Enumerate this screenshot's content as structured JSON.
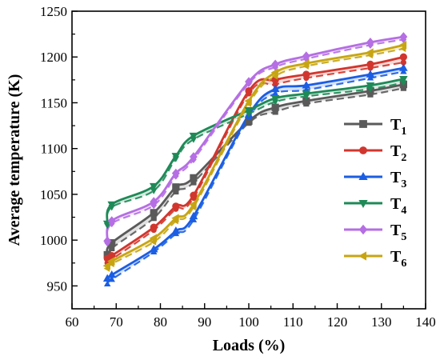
{
  "chart_data": {
    "type": "line",
    "xlabel": "Loads (%)",
    "ylabel": "Average temperature (K)",
    "xlim": [
      60,
      140
    ],
    "ylim": [
      925,
      1250
    ],
    "xticks": [
      60,
      70,
      80,
      90,
      100,
      110,
      120,
      130,
      140
    ],
    "yticks": [
      950,
      1000,
      1050,
      1100,
      1150,
      1200,
      1250
    ],
    "grid": false,
    "legend_position": "right",
    "x": [
      68,
      69,
      78.5,
      83.5,
      87.5,
      100,
      106,
      113,
      127.5,
      135
    ],
    "series": [
      {
        "name": "T1",
        "name_base": "T",
        "name_sub": "1",
        "color": "#5a5a5a",
        "marker": "square",
        "values": [
          984,
          997,
          1030,
          1058,
          1068,
          1130,
          1145,
          1152,
          1163,
          1170
        ],
        "values_dashed": [
          981,
          991,
          1024,
          1053,
          1063,
          1128,
          1140,
          1149,
          1159,
          1166
        ]
      },
      {
        "name": "T2",
        "name_base": "T",
        "name_sub": "2",
        "color": "#d1362e",
        "marker": "circle",
        "values": [
          980,
          983,
          1014,
          1037,
          1049,
          1163,
          1175,
          1181,
          1192,
          1200
        ],
        "values_dashed": [
          975,
          979,
          1011,
          1034,
          1046,
          1160,
          1170,
          1177,
          1188,
          1194
        ]
      },
      {
        "name": "T3",
        "name_base": "T",
        "name_sub": "3",
        "color": "#1b5ee3",
        "marker": "triangle-up",
        "values": [
          958,
          962,
          990,
          1010,
          1026,
          1137,
          1165,
          1169,
          1181,
          1188
        ],
        "values_dashed": [
          952,
          957,
          987,
          1007,
          1022,
          1134,
          1160,
          1164,
          1177,
          1184
        ]
      },
      {
        "name": "T4",
        "name_base": "T",
        "name_sub": "4",
        "color": "#1e8a57",
        "marker": "triangle-down",
        "values": [
          1018,
          1039,
          1059,
          1092,
          1114,
          1142,
          1155,
          1160,
          1169,
          1176
        ],
        "values_dashed": [
          1016,
          1036,
          1054,
          1089,
          1110,
          1138,
          1151,
          1157,
          1165,
          1172
        ]
      },
      {
        "name": "T5",
        "name_base": "T",
        "name_sub": "5",
        "color": "#b56ee3",
        "marker": "diamond",
        "values": [
          999,
          1021,
          1042,
          1073,
          1091,
          1173,
          1192,
          1201,
          1216,
          1222
        ],
        "values_dashed": [
          997,
          1018,
          1038,
          1070,
          1088,
          1171,
          1189,
          1198,
          1213,
          1219
        ]
      },
      {
        "name": "T6",
        "name_base": "T",
        "name_sub": "6",
        "color": "#c7a512",
        "marker": "triangle-left",
        "values": [
          972,
          977,
          1002,
          1024,
          1039,
          1152,
          1183,
          1193,
          1205,
          1213
        ],
        "values_dashed": [
          969,
          974,
          998,
          1021,
          1036,
          1149,
          1179,
          1190,
          1202,
          1209
        ]
      }
    ]
  }
}
